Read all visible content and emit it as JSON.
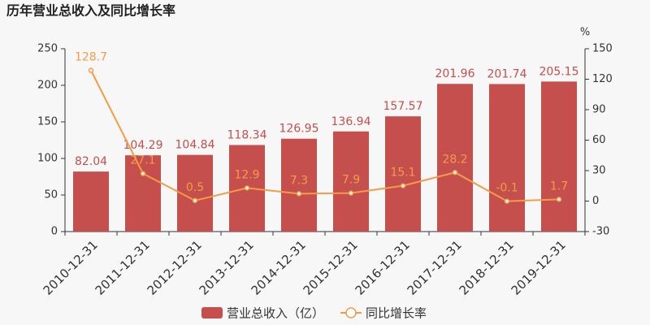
{
  "chart_data": {
    "type": "bar",
    "title": "历年营业总收入及同比增长率",
    "categories": [
      "2010-12-31",
      "2011-12-31",
      "2012-12-31",
      "2013-12-31",
      "2014-12-31",
      "2015-12-31",
      "2016-12-31",
      "2017-12-31",
      "2018-12-31",
      "2019-12-31"
    ],
    "series": [
      {
        "name": "营业总收入（亿）",
        "type": "bar",
        "color": "#c44f4d",
        "values": [
          82.04,
          104.29,
          104.84,
          118.34,
          126.95,
          136.94,
          157.57,
          201.96,
          201.74,
          205.15
        ]
      },
      {
        "name": "同比增长率",
        "type": "line",
        "axis": "y2",
        "color": "#f39c48",
        "values": [
          128.7,
          27.1,
          0.5,
          12.9,
          7.3,
          7.9,
          15.1,
          28.2,
          -0.1,
          1.7
        ]
      }
    ],
    "ylim": [
      0,
      250
    ],
    "yticks": [
      0,
      50,
      100,
      150,
      200,
      250
    ],
    "y2lim": [
      -30,
      150
    ],
    "y2ticks": [
      -30,
      0,
      30,
      60,
      90,
      120,
      150
    ],
    "y2label": "%",
    "grid": false
  }
}
